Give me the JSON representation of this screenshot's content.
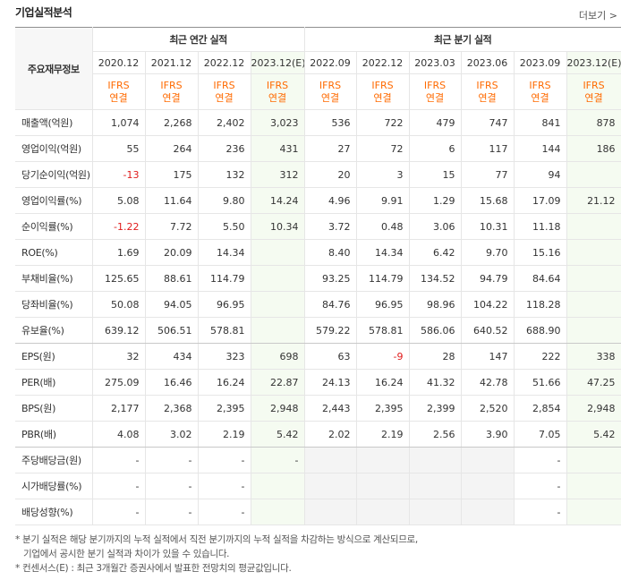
{
  "header": {
    "title": "기업실적분석",
    "more": "더보기"
  },
  "table": {
    "corner": "주요재무정보",
    "groups": [
      {
        "title": "최근 연간 실적",
        "periods": [
          {
            "date": "2020.12",
            "basis": [
              "IFRS",
              "연결"
            ]
          },
          {
            "date": "2021.12",
            "basis": [
              "IFRS",
              "연결"
            ]
          },
          {
            "date": "2022.12",
            "basis": [
              "IFRS",
              "연결"
            ]
          },
          {
            "date": "2023.12(E)",
            "basis": [
              "IFRS",
              "연결"
            ]
          }
        ]
      },
      {
        "title": "최근 분기 실적",
        "periods": [
          {
            "date": "2022.09",
            "basis": [
              "IFRS",
              "연결"
            ]
          },
          {
            "date": "2022.12",
            "basis": [
              "IFRS",
              "연결"
            ]
          },
          {
            "date": "2023.03",
            "basis": [
              "IFRS",
              "연결"
            ]
          },
          {
            "date": "2023.06",
            "basis": [
              "IFRS",
              "연결"
            ]
          },
          {
            "date": "2023.09",
            "basis": [
              "IFRS",
              "연결"
            ]
          },
          {
            "date": "2023.12(E)",
            "basis": [
              "IFRS",
              "연결"
            ]
          }
        ]
      }
    ],
    "sections": [
      {
        "rows": [
          {
            "label": "매출액(억원)",
            "values": [
              "1,074",
              "2,268",
              "2,402",
              "3,023",
              "536",
              "722",
              "479",
              "747",
              "841",
              "878"
            ]
          },
          {
            "label": "영업이익(억원)",
            "values": [
              "55",
              "264",
              "236",
              "431",
              "27",
              "72",
              "6",
              "117",
              "144",
              "186"
            ]
          },
          {
            "label": "당기순이익(억원)",
            "values": [
              "-13",
              "175",
              "132",
              "312",
              "20",
              "3",
              "15",
              "77",
              "94",
              null
            ]
          },
          {
            "label": "영업이익률(%)",
            "values": [
              "5.08",
              "11.64",
              "9.80",
              "14.24",
              "4.96",
              "9.91",
              "1.29",
              "15.68",
              "17.09",
              "21.12"
            ]
          },
          {
            "label": "순이익률(%)",
            "values": [
              "-1.22",
              "7.72",
              "5.50",
              "10.34",
              "3.72",
              "0.48",
              "3.06",
              "10.31",
              "11.18",
              null
            ]
          },
          {
            "label": "ROE(%)",
            "values": [
              "1.69",
              "20.09",
              "14.34",
              null,
              "8.40",
              "14.34",
              "6.42",
              "9.70",
              "15.16",
              null
            ]
          },
          {
            "label": "부채비율(%)",
            "values": [
              "125.65",
              "88.61",
              "114.79",
              null,
              "93.25",
              "114.79",
              "134.52",
              "94.79",
              "84.64",
              null
            ]
          },
          {
            "label": "당좌비율(%)",
            "values": [
              "50.08",
              "94.05",
              "96.95",
              null,
              "84.76",
              "96.95",
              "98.96",
              "104.22",
              "118.28",
              null
            ]
          },
          {
            "label": "유보율(%)",
            "values": [
              "639.12",
              "506.51",
              "578.81",
              null,
              "579.22",
              "578.81",
              "586.06",
              "640.52",
              "688.90",
              null
            ]
          }
        ]
      },
      {
        "rows": [
          {
            "label": "EPS(원)",
            "values": [
              "32",
              "434",
              "323",
              "698",
              "63",
              "-9",
              "28",
              "147",
              "222",
              "338"
            ]
          },
          {
            "label": "PER(배)",
            "values": [
              "275.09",
              "16.46",
              "16.24",
              "22.87",
              "24.13",
              "16.24",
              "41.32",
              "42.78",
              "51.66",
              "47.25"
            ]
          },
          {
            "label": "BPS(원)",
            "values": [
              "2,177",
              "2,368",
              "2,395",
              "2,948",
              "2,443",
              "2,395",
              "2,399",
              "2,520",
              "2,854",
              "2,948"
            ]
          },
          {
            "label": "PBR(배)",
            "values": [
              "4.08",
              "3.02",
              "2.19",
              "5.42",
              "2.02",
              "2.19",
              "2.56",
              "3.90",
              "7.05",
              "5.42"
            ]
          }
        ]
      },
      {
        "rows": [
          {
            "label": "주당배당금(원)",
            "values": [
              "-",
              "-",
              "-",
              "-",
              null,
              null,
              null,
              null,
              "-",
              null
            ]
          },
          {
            "label": "시가배당률(%)",
            "values": [
              "-",
              "-",
              "-",
              null,
              null,
              null,
              null,
              null,
              "-",
              null
            ]
          },
          {
            "label": "배당성향(%)",
            "values": [
              "-",
              "-",
              "-",
              null,
              null,
              null,
              null,
              null,
              "-",
              null
            ]
          }
        ]
      }
    ]
  },
  "notes": [
    [
      "* 분기 실적은 해당 분기까지의 누적 실적에서 직전 분기까지의 누적 실적을 차감하는 방식으로 계산되므로,",
      "기업에서 공시한 분기 실적과 차이가 있을 수 있습니다."
    ],
    [
      "* 컨센서스(E) : 최근 3개월간 증권사에서 발표한 전망치의 평균값입니다."
    ]
  ]
}
